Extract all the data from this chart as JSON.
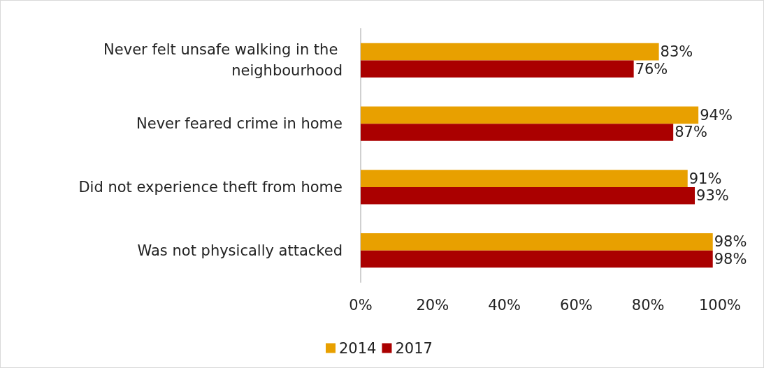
{
  "chart_data": {
    "type": "bar",
    "orientation": "horizontal",
    "categories": [
      "Never felt unsafe walking in the neighbourhood",
      "Never feared crime in home",
      "Did not experience theft from home",
      "Was not physically attacked"
    ],
    "series": [
      {
        "name": "2014",
        "color": "#e8a000",
        "values": [
          83,
          94,
          91,
          98
        ],
        "value_labels": [
          "83%",
          "94%",
          "91%",
          "98%"
        ]
      },
      {
        "name": "2017",
        "color": "#aa0000",
        "values": [
          76,
          87,
          93,
          98
        ],
        "value_labels": [
          "76%",
          "87%",
          "93%",
          "98%"
        ]
      }
    ],
    "xlim": [
      0,
      100
    ],
    "xticks": [
      {
        "value": 0,
        "label": "0%"
      },
      {
        "value": 20,
        "label": "20%"
      },
      {
        "value": 40,
        "label": "40%"
      },
      {
        "value": 60,
        "label": "60%"
      },
      {
        "value": 80,
        "label": "80%"
      },
      {
        "value": 100,
        "label": "100%"
      }
    ],
    "grid": false,
    "legend": "bottom"
  }
}
